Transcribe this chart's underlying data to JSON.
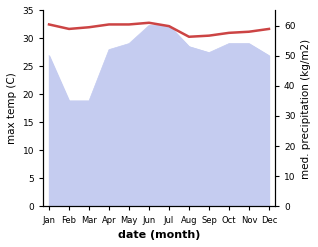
{
  "months": [
    "Jan",
    "Feb",
    "Mar",
    "Apr",
    "May",
    "Jun",
    "Jul",
    "Aug",
    "Sep",
    "Oct",
    "Nov",
    "Dec"
  ],
  "x": [
    0,
    1,
    2,
    3,
    4,
    5,
    6,
    7,
    8,
    9,
    10,
    11
  ],
  "temp": [
    32.5,
    31.7,
    32.0,
    32.5,
    32.5,
    32.8,
    32.2,
    30.3,
    30.5,
    31.0,
    31.2,
    31.7
  ],
  "precip": [
    50,
    35,
    35,
    52,
    54,
    60,
    60,
    53,
    51,
    54,
    54,
    50
  ],
  "temp_color": "#cc4444",
  "precip_fill_color": "#c5ccf0",
  "xlabel": "date (month)",
  "ylabel_left": "max temp (C)",
  "ylabel_right": "med. precipitation (kg/m2)",
  "ylim_left": [
    0,
    35
  ],
  "ylim_right": [
    0,
    65
  ],
  "yticks_left": [
    0,
    5,
    10,
    15,
    20,
    25,
    30,
    35
  ],
  "yticks_right": [
    0,
    10,
    20,
    30,
    40,
    50,
    60
  ],
  "background_color": "#ffffff"
}
